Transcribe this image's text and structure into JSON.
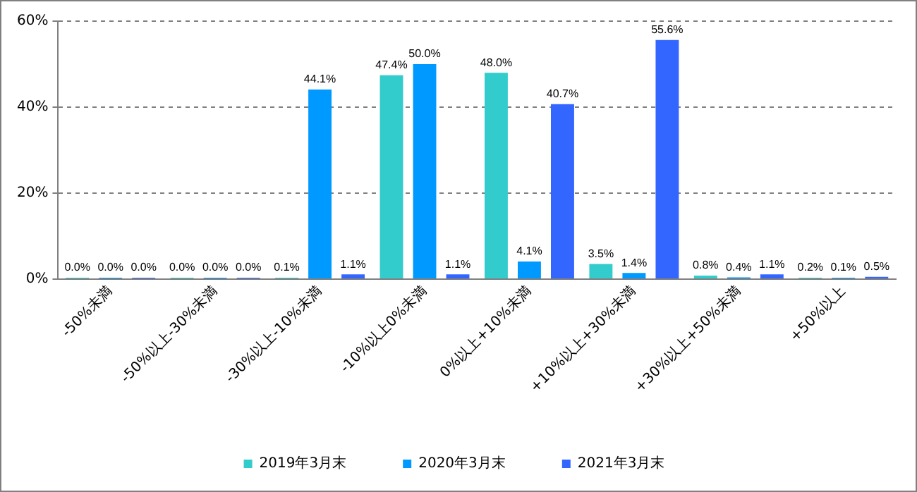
{
  "chart_data": {
    "type": "bar",
    "categories": [
      "-50%未満",
      "-50%以上-30%未満",
      "-30%以上-10%未満",
      "-10%以上0%未満",
      "0%以上+10%未満",
      "+10%以上+30%未満",
      "+30%以上+50%未満",
      "+50%以上"
    ],
    "series": [
      {
        "name": "2019年3月末",
        "color": "#33cccc",
        "values": [
          0.0,
          0.0,
          0.1,
          47.4,
          48.0,
          3.5,
          0.8,
          0.2
        ],
        "value_labels": [
          "0.0%",
          "0.0%",
          "0.1%",
          "47.4%",
          "48.0%",
          "3.5%",
          "0.8%",
          "0.2%"
        ]
      },
      {
        "name": "2020年3月末",
        "color": "#0099ff",
        "values": [
          0.0,
          0.0,
          44.1,
          50.0,
          4.1,
          1.4,
          0.4,
          0.1
        ],
        "value_labels": [
          "0.0%",
          "0.0%",
          "44.1%",
          "50.0%",
          "4.1%",
          "1.4%",
          "0.4%",
          "0.1%"
        ]
      },
      {
        "name": "2021年3月末",
        "color": "#3366ff",
        "values": [
          0.0,
          0.0,
          1.1,
          1.1,
          40.7,
          55.6,
          1.1,
          0.5
        ],
        "value_labels": [
          "0.0%",
          "0.0%",
          "1.1%",
          "1.1%",
          "40.7%",
          "55.6%",
          "1.1%",
          "0.5%"
        ]
      }
    ],
    "ylim": [
      0,
      60
    ],
    "yticks": [
      {
        "value": 0,
        "label": "0%"
      },
      {
        "value": 20,
        "label": "20%"
      },
      {
        "value": 40,
        "label": "40%"
      },
      {
        "value": 60,
        "label": "60%"
      }
    ],
    "grid": "y",
    "legend": "bottom"
  }
}
